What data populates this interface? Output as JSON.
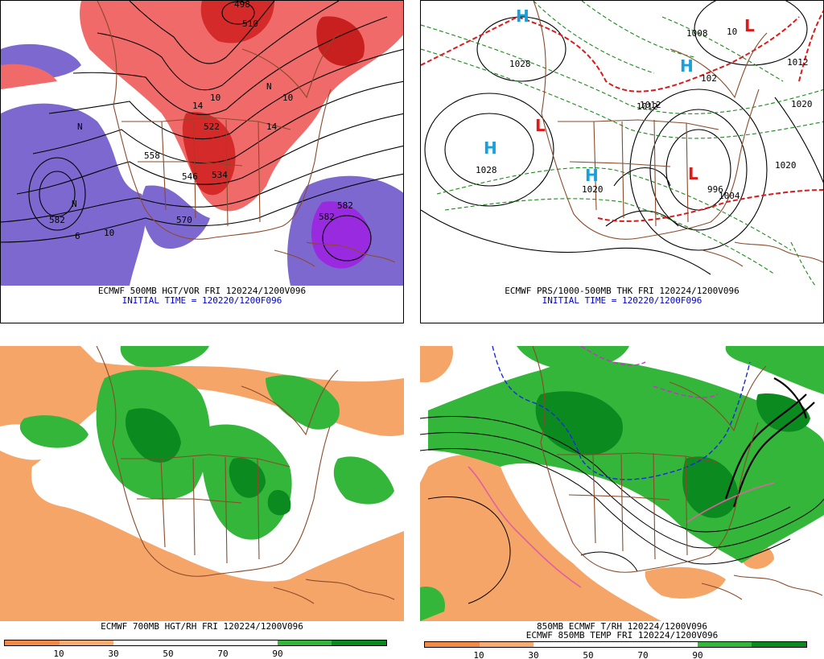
{
  "panels": [
    {
      "id": "p1",
      "caption": "ECMWF 500MB HGT/VOR FRI 120224/1200V096",
      "caption2": "INITIAL TIME = 120220/1200F096",
      "labels": [
        "582",
        "570",
        "558",
        "546",
        "534",
        "522",
        "510",
        "498",
        "582",
        "582",
        "6",
        "10",
        "10",
        "10",
        "14",
        "14",
        "N",
        "N",
        "N"
      ]
    },
    {
      "id": "p2",
      "caption": "ECMWF PRS/1000-500MB THK FRI 120224/1200V096",
      "caption2": "INITIAL TIME = 120220/1200F096",
      "labels": [
        "1028",
        "1028",
        "1012",
        "1012",
        "1012",
        "1020",
        "1020",
        "996",
        "1004",
        "1020",
        "1008",
        "102",
        "10"
      ],
      "centers": [
        "H",
        "H",
        "H",
        "H",
        "L",
        "L",
        "L"
      ]
    },
    {
      "id": "p3",
      "caption": "ECMWF 700MB HGT/RH FRI 120224/1200V096",
      "colorbar": {
        "colors": [
          "#f08a46",
          "#f6ad72",
          "#ffffff",
          "#ffffff",
          "#ffffff",
          "#33b63a",
          "#0a8a1f"
        ],
        "ticks": [
          "10",
          "30",
          "50",
          "70",
          "90"
        ]
      }
    },
    {
      "id": "p4",
      "caption": "850MB ECMWF T/RH 120224/1200V096",
      "caption2": "ECMWF 850MB TEMP FRI 120224/1200V096",
      "colorbar": {
        "colors": [
          "#f08a46",
          "#f6ad72",
          "#ffffff",
          "#ffffff",
          "#ffffff",
          "#33b63a",
          "#0a8a1f"
        ],
        "ticks": [
          "10",
          "30",
          "50",
          "70",
          "90"
        ]
      }
    }
  ],
  "colors": {
    "vort_pos": "#f06a6a",
    "vort_pos_dark": "#d42a2a",
    "vort_neg": "#7d68d0",
    "vort_neg_dark": "#9a2ae0",
    "rh_dry": "#f6a568",
    "rh_moist": "#33b63a",
    "rh_wet": "#0a8a1f",
    "geog": "#8b4a2a",
    "thick_red": "#dd1a1a",
    "thick_green": "#1a8a1a",
    "H": "#1aa0d8",
    "L": "#dd1a1a"
  }
}
